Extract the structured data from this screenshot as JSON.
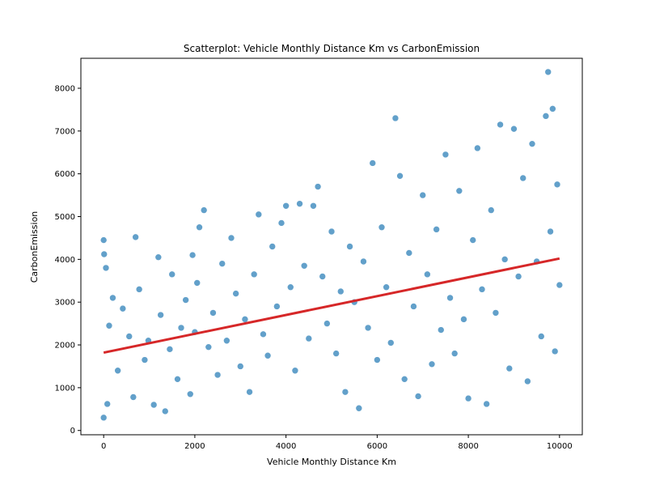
{
  "chart_data": {
    "type": "scatter",
    "title": "Scatterplot: Vehicle Monthly Distance Km vs CarbonEmission",
    "xlabel": "Vehicle Monthly Distance Km",
    "ylabel": "CarbonEmission",
    "xlim": [
      -500,
      10500
    ],
    "ylim": [
      -100,
      8700
    ],
    "xticks": [
      0,
      2000,
      4000,
      6000,
      8000,
      10000
    ],
    "xtick_labels": [
      "0",
      "2000",
      "4000",
      "6000",
      "8000",
      "10000"
    ],
    "yticks": [
      0,
      1000,
      2000,
      3000,
      4000,
      5000,
      6000,
      7000,
      8000
    ],
    "ytick_labels": [
      "0",
      "1000",
      "2000",
      "3000",
      "4000",
      "5000",
      "6000",
      "7000",
      "8000"
    ],
    "grid": false,
    "point_color": "#1f77b4",
    "point_opacity": 0.7,
    "point_edge_color": "#ffffff",
    "regression_color": "#d62728",
    "regression_line": {
      "x": [
        0,
        10000
      ],
      "y": [
        1820,
        4020
      ]
    },
    "series": [
      {
        "points": [
          [
            0,
            300
          ],
          [
            0,
            4450
          ],
          [
            10,
            4120
          ],
          [
            50,
            3800
          ],
          [
            80,
            620
          ],
          [
            120,
            2450
          ],
          [
            200,
            3100
          ],
          [
            310,
            1400
          ],
          [
            420,
            2850
          ],
          [
            560,
            2200
          ],
          [
            650,
            780
          ],
          [
            700,
            4520
          ],
          [
            780,
            3300
          ],
          [
            900,
            1650
          ],
          [
            980,
            2100
          ],
          [
            1100,
            600
          ],
          [
            1200,
            4050
          ],
          [
            1250,
            2700
          ],
          [
            1350,
            450
          ],
          [
            1450,
            1900
          ],
          [
            1500,
            3650
          ],
          [
            1620,
            1200
          ],
          [
            1700,
            2400
          ],
          [
            1800,
            3050
          ],
          [
            1900,
            850
          ],
          [
            1950,
            4100
          ],
          [
            2000,
            2300
          ],
          [
            2050,
            3450
          ],
          [
            2100,
            4750
          ],
          [
            2200,
            5150
          ],
          [
            2300,
            1950
          ],
          [
            2400,
            2750
          ],
          [
            2500,
            1300
          ],
          [
            2600,
            3900
          ],
          [
            2700,
            2100
          ],
          [
            2800,
            4500
          ],
          [
            2900,
            3200
          ],
          [
            3000,
            1500
          ],
          [
            3100,
            2600
          ],
          [
            3200,
            900
          ],
          [
            3300,
            3650
          ],
          [
            3400,
            5050
          ],
          [
            3500,
            2250
          ],
          [
            3600,
            1750
          ],
          [
            3700,
            4300
          ],
          [
            3800,
            2900
          ],
          [
            3900,
            4850
          ],
          [
            4000,
            5250
          ],
          [
            4100,
            3350
          ],
          [
            4200,
            1400
          ],
          [
            4300,
            5300
          ],
          [
            4400,
            3850
          ],
          [
            4500,
            2150
          ],
          [
            4600,
            5250
          ],
          [
            4700,
            5700
          ],
          [
            4800,
            3600
          ],
          [
            4900,
            2500
          ],
          [
            5000,
            4650
          ],
          [
            5100,
            1800
          ],
          [
            5200,
            3250
          ],
          [
            5300,
            900
          ],
          [
            5400,
            4300
          ],
          [
            5500,
            3000
          ],
          [
            5600,
            520
          ],
          [
            5700,
            3950
          ],
          [
            5800,
            2400
          ],
          [
            5900,
            6250
          ],
          [
            6000,
            1650
          ],
          [
            6100,
            4750
          ],
          [
            6200,
            3350
          ],
          [
            6300,
            2050
          ],
          [
            6400,
            7300
          ],
          [
            6500,
            5950
          ],
          [
            6600,
            1200
          ],
          [
            6700,
            4150
          ],
          [
            6800,
            2900
          ],
          [
            6900,
            800
          ],
          [
            7000,
            5500
          ],
          [
            7100,
            3650
          ],
          [
            7200,
            1550
          ],
          [
            7300,
            4700
          ],
          [
            7400,
            2350
          ],
          [
            7500,
            6450
          ],
          [
            7600,
            3100
          ],
          [
            7700,
            1800
          ],
          [
            7800,
            5600
          ],
          [
            7900,
            2600
          ],
          [
            8000,
            750
          ],
          [
            8100,
            4450
          ],
          [
            8200,
            6600
          ],
          [
            8300,
            3300
          ],
          [
            8400,
            620
          ],
          [
            8500,
            5150
          ],
          [
            8600,
            2750
          ],
          [
            8700,
            7150
          ],
          [
            8800,
            4000
          ],
          [
            8900,
            1450
          ],
          [
            9000,
            7050
          ],
          [
            9100,
            3600
          ],
          [
            9200,
            5900
          ],
          [
            9300,
            1150
          ],
          [
            9400,
            6700
          ],
          [
            9500,
            3950
          ],
          [
            9600,
            2200
          ],
          [
            9700,
            7350
          ],
          [
            9750,
            8380
          ],
          [
            9800,
            4650
          ],
          [
            9850,
            7520
          ],
          [
            9900,
            1850
          ],
          [
            9950,
            5750
          ],
          [
            10000,
            3400
          ]
        ]
      }
    ]
  }
}
